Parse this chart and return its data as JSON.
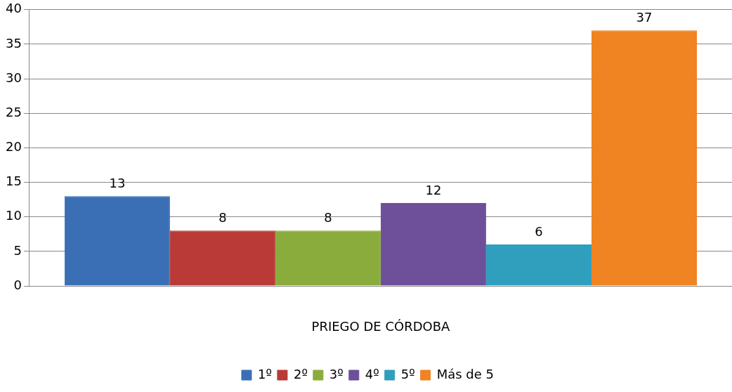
{
  "chart_data": {
    "type": "bar",
    "xlabel": "PRIEGO DE CÓRDOBA",
    "categories": [
      null
    ],
    "series": [
      {
        "name": "1º",
        "color": "#3a6fb5",
        "values": [
          13
        ]
      },
      {
        "name": "2º",
        "color": "#b93a36",
        "values": [
          8
        ]
      },
      {
        "name": "3º",
        "color": "#8aac3c",
        "values": [
          8
        ]
      },
      {
        "name": "4º",
        "color": "#6e4f99",
        "values": [
          12
        ]
      },
      {
        "name": "5º",
        "color": "#2f9fbd",
        "values": [
          6
        ]
      },
      {
        "name": "Más de 5",
        "color": "#f08322",
        "values": [
          37
        ]
      }
    ],
    "ylim": [
      0,
      40
    ],
    "yticks": [
      0,
      5,
      10,
      15,
      20,
      25,
      30,
      35,
      40
    ],
    "grid": "y",
    "legend": "bottom",
    "data_labels": true
  }
}
